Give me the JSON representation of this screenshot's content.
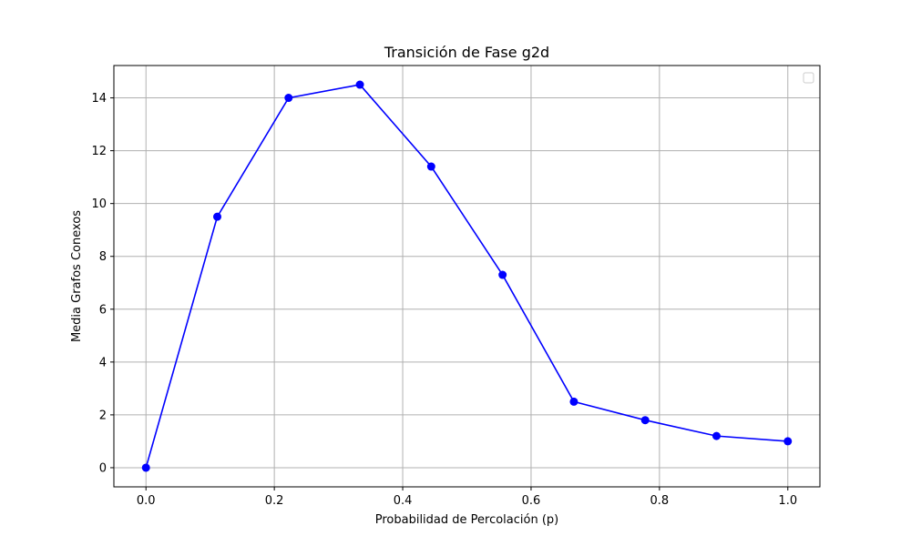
{
  "chart_data": {
    "type": "line",
    "title": "Transición de Fase g2d",
    "xlabel": "Probabilidad de Percolación (p)",
    "ylabel": "Media Grafos Conexos",
    "x": [
      0.0,
      0.1111,
      0.2222,
      0.3333,
      0.4444,
      0.5556,
      0.6667,
      0.7778,
      0.8889,
      1.0
    ],
    "series": [
      {
        "values": [
          0.0,
          9.5,
          14.0,
          14.5,
          11.4,
          7.3,
          2.5,
          1.8,
          1.2,
          1.0
        ],
        "color": "#0000ff",
        "marker": "circle"
      }
    ],
    "xlim": [
      -0.05,
      1.05
    ],
    "ylim": [
      -0.725,
      15.225
    ],
    "xticks": [
      0.0,
      0.2,
      0.4,
      0.6,
      0.8,
      1.0
    ],
    "xtick_labels": [
      "0.0",
      "0.2",
      "0.4",
      "0.6",
      "0.8",
      "1.0"
    ],
    "yticks": [
      0,
      2,
      4,
      6,
      8,
      10,
      12,
      14
    ],
    "ytick_labels": [
      "0",
      "2",
      "4",
      "6",
      "8",
      "10",
      "12",
      "14"
    ],
    "grid": true,
    "legend": "top-right",
    "legend_entries": []
  }
}
